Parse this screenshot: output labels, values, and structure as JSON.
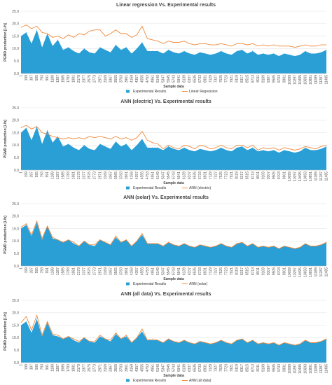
{
  "chart_data": [
    {
      "type": "area",
      "title": "Linear regression Vs. Experimental results",
      "xlabel": "Sample data",
      "ylabel": "PGMD production [L/h]",
      "ylim": [
        0,
        25
      ],
      "yticks": [
        "0.0",
        "5.0",
        "10.0",
        "15.0",
        "20.0",
        "25.0"
      ],
      "x_ticks": [
        "1",
        "199",
        "397",
        "595",
        "793",
        "991",
        "1189",
        "1387",
        "1585",
        "1783",
        "1981",
        "2179",
        "2377",
        "2575",
        "2773",
        "2971",
        "3169",
        "3367",
        "3565",
        "3763",
        "3961",
        "4159",
        "4357",
        "4555",
        "4753",
        "4951",
        "5149",
        "5347",
        "5545",
        "5743",
        "5941",
        "6139",
        "6337",
        "6535",
        "6733",
        "6931",
        "7129",
        "7327",
        "7525",
        "7723",
        "7921",
        "8119",
        "8317",
        "8515",
        "8713",
        "8911",
        "9109",
        "9307",
        "9505",
        "9703",
        "9901",
        "10099",
        "10297",
        "10495",
        "10693",
        "10891",
        "11089",
        "11287",
        "11485"
      ],
      "grid": true,
      "legend": "bottom",
      "series": [
        {
          "name": "Experimental Results",
          "color": "#2a9fd6",
          "kind": "area",
          "values": [
            15.0,
            16.5,
            12.0,
            17.5,
            10.5,
            16.0,
            11.0,
            13.5,
            9.5,
            10.5,
            9.0,
            8.0,
            10.0,
            8.5,
            8.0,
            10.5,
            9.5,
            8.5,
            11.5,
            9.5,
            10.5,
            8.0,
            10.0,
            12.5,
            9.0,
            9.0,
            9.0,
            8.0,
            9.5,
            8.5,
            8.0,
            9.0,
            8.0,
            7.5,
            8.5,
            8.0,
            7.5,
            8.0,
            9.0,
            8.0,
            7.5,
            9.0,
            9.5,
            8.0,
            9.0,
            7.5,
            8.0,
            7.5,
            8.0,
            7.0,
            8.0,
            7.5,
            7.0,
            7.5,
            9.0,
            8.0,
            8.0,
            8.5,
            9.5
          ]
        },
        {
          "name": "Linear Regression",
          "color": "#f08a3c",
          "kind": "line",
          "values": [
            18.5,
            19.5,
            18.0,
            19.0,
            16.5,
            16.0,
            14.5,
            15.0,
            14.0,
            15.5,
            14.5,
            16.0,
            15.5,
            17.0,
            17.5,
            17.5,
            15.0,
            16.0,
            17.5,
            16.0,
            16.0,
            14.5,
            15.5,
            19.0,
            14.0,
            13.5,
            13.0,
            12.0,
            13.0,
            12.5,
            12.5,
            13.0,
            12.0,
            11.5,
            12.0,
            12.0,
            11.5,
            11.5,
            12.0,
            11.5,
            11.0,
            12.0,
            12.0,
            11.5,
            12.0,
            11.0,
            11.5,
            11.0,
            11.5,
            11.0,
            11.0,
            11.0,
            10.5,
            11.0,
            11.5,
            11.0,
            11.0,
            11.5,
            11.5
          ]
        }
      ]
    },
    {
      "type": "area",
      "title": "ANN (electric) Vs. Experimental results",
      "xlabel": "Sample data",
      "ylabel": "PGMD production [L/h]",
      "ylim": [
        0,
        25
      ],
      "yticks": [
        "0.0",
        "5.0",
        "10.0",
        "15.0",
        "20.0",
        "25.0"
      ],
      "x_ticks": [
        "1",
        "199",
        "397",
        "595",
        "793",
        "991",
        "1189",
        "1387",
        "1585",
        "1783",
        "1981",
        "2179",
        "2377",
        "2575",
        "2773",
        "2971",
        "3169",
        "3367",
        "3565",
        "3763",
        "3961",
        "4159",
        "4357",
        "4555",
        "4753",
        "4951",
        "5149",
        "5347",
        "5545",
        "5743",
        "5941",
        "6139",
        "6337",
        "6535",
        "6733",
        "6931",
        "7129",
        "7327",
        "7525",
        "7723",
        "7921",
        "8119",
        "8317",
        "8515",
        "8713",
        "8911",
        "9109",
        "9307",
        "9505",
        "9703",
        "9901",
        "10099",
        "10297",
        "10495",
        "10693",
        "10891",
        "11089",
        "11287",
        "11485"
      ],
      "grid": true,
      "legend": "bottom",
      "series": [
        {
          "name": "Experimental Results",
          "color": "#2a9fd6",
          "kind": "area",
          "values": [
            15.0,
            17.0,
            12.0,
            17.5,
            10.5,
            16.0,
            11.0,
            13.5,
            9.5,
            10.5,
            9.0,
            8.0,
            10.0,
            8.5,
            8.0,
            10.5,
            9.5,
            8.5,
            11.5,
            9.5,
            10.5,
            8.0,
            10.0,
            12.5,
            9.0,
            9.0,
            9.0,
            8.0,
            9.5,
            8.5,
            8.0,
            9.0,
            8.0,
            7.5,
            8.5,
            8.0,
            7.5,
            8.0,
            9.0,
            8.0,
            7.5,
            9.0,
            9.5,
            8.0,
            9.0,
            7.5,
            8.0,
            7.5,
            8.0,
            7.0,
            8.0,
            7.5,
            7.0,
            7.5,
            9.0,
            8.0,
            8.0,
            8.5,
            9.5
          ]
        },
        {
          "name": "ANN (electric)",
          "color": "#f08a3c",
          "kind": "line",
          "values": [
            17.0,
            18.0,
            16.5,
            17.5,
            15.0,
            14.5,
            13.5,
            13.0,
            12.5,
            13.0,
            12.5,
            13.0,
            12.5,
            13.5,
            13.0,
            13.5,
            13.0,
            12.5,
            13.5,
            12.5,
            13.0,
            12.0,
            13.0,
            15.5,
            12.0,
            11.0,
            10.5,
            8.5,
            10.0,
            9.0,
            8.5,
            10.0,
            9.5,
            8.5,
            10.0,
            9.5,
            8.5,
            9.0,
            10.0,
            9.0,
            8.5,
            10.0,
            10.0,
            9.0,
            10.0,
            8.0,
            9.0,
            8.5,
            9.0,
            8.0,
            9.0,
            8.5,
            8.0,
            8.5,
            9.5,
            9.0,
            8.5,
            9.5,
            10.0
          ]
        }
      ]
    },
    {
      "type": "area",
      "title": "ANN (solar) Vs. Experimental results",
      "xlabel": "Sample data",
      "ylabel": "PGMD production [L/h]",
      "ylim": [
        0,
        25
      ],
      "yticks": [
        "0.0",
        "5.0",
        "10.0",
        "15.0",
        "20.0",
        "25.0"
      ],
      "x_ticks": [
        "1",
        "199",
        "397",
        "595",
        "793",
        "991",
        "1189",
        "1387",
        "1585",
        "1783",
        "1981",
        "2179",
        "2377",
        "2575",
        "2773",
        "2971",
        "3169",
        "3367",
        "3565",
        "3763",
        "3961",
        "4159",
        "4357",
        "4555",
        "4753",
        "4951",
        "5149",
        "5347",
        "5545",
        "5743",
        "5941",
        "6139",
        "6337",
        "6535",
        "6733",
        "6931",
        "7129",
        "7327",
        "7525",
        "7723",
        "7921",
        "8119",
        "8317",
        "8515",
        "8713",
        "8911",
        "9109",
        "9307",
        "9505",
        "9703",
        "9901",
        "10099",
        "10297",
        "10495",
        "10693",
        "10891",
        "11089",
        "11287",
        "11485"
      ],
      "grid": true,
      "legend": "bottom",
      "series": [
        {
          "name": "Experimental Results",
          "color": "#2a9fd6",
          "kind": "area",
          "values": [
            15.0,
            16.5,
            12.0,
            17.5,
            10.5,
            16.0,
            11.0,
            10.5,
            9.5,
            10.5,
            9.0,
            8.0,
            10.0,
            8.5,
            8.0,
            10.5,
            9.5,
            8.5,
            11.5,
            9.5,
            10.5,
            8.0,
            10.0,
            12.5,
            9.0,
            9.0,
            9.0,
            8.0,
            9.5,
            8.5,
            8.0,
            9.0,
            8.0,
            7.5,
            8.5,
            8.0,
            7.5,
            8.0,
            9.0,
            8.0,
            7.5,
            9.0,
            9.5,
            8.0,
            9.0,
            7.5,
            8.0,
            7.5,
            8.0,
            7.0,
            8.0,
            7.5,
            7.0,
            7.5,
            9.0,
            8.0,
            8.0,
            8.5,
            9.5
          ]
        },
        {
          "name": "ANN (solar)",
          "color": "#f08a3c",
          "kind": "line",
          "values": [
            15.5,
            17.0,
            12.5,
            18.0,
            11.0,
            16.0,
            11.5,
            10.5,
            9.5,
            10.5,
            9.5,
            8.0,
            10.0,
            8.5,
            8.5,
            10.5,
            9.5,
            8.5,
            12.0,
            9.5,
            10.5,
            8.0,
            10.0,
            13.0,
            9.0,
            9.0,
            9.0,
            8.0,
            9.5,
            8.5,
            8.0,
            9.0,
            8.0,
            7.5,
            8.5,
            8.0,
            7.5,
            8.0,
            9.0,
            8.0,
            7.5,
            9.0,
            9.5,
            8.0,
            9.0,
            7.5,
            8.0,
            7.5,
            8.0,
            7.0,
            8.0,
            7.5,
            7.0,
            7.5,
            9.0,
            8.0,
            8.0,
            8.5,
            9.5
          ]
        }
      ]
    },
    {
      "type": "area",
      "title": "ANN (all data) Vs. Experimental results",
      "xlabel": "Sample data",
      "ylabel": "PGMD production [L/h]",
      "ylim": [
        0,
        25
      ],
      "yticks": [
        "0.0",
        "5.0",
        "10.0",
        "15.0",
        "20.0",
        "25.0"
      ],
      "x_ticks": [
        "1",
        "199",
        "397",
        "595",
        "793",
        "991",
        "1189",
        "1387",
        "1585",
        "1783",
        "1981",
        "2179",
        "2377",
        "2575",
        "2773",
        "2971",
        "3169",
        "3367",
        "3565",
        "3763",
        "3961",
        "4159",
        "4357",
        "4555",
        "4753",
        "4951",
        "5149",
        "5347",
        "5545",
        "5743",
        "5941",
        "6139",
        "6337",
        "6535",
        "6733",
        "6931",
        "7129",
        "7327",
        "7525",
        "7723",
        "7921",
        "8119",
        "8317",
        "8515",
        "8713",
        "8911",
        "9109",
        "9307",
        "9505",
        "9703",
        "9901",
        "10099",
        "10297",
        "10495",
        "10693",
        "10891",
        "11089",
        "11287",
        "11485"
      ],
      "grid": true,
      "legend": "bottom",
      "series": [
        {
          "name": "Experimental Results",
          "color": "#2a9fd6",
          "kind": "area",
          "values": [
            15.0,
            16.5,
            12.0,
            17.5,
            10.5,
            16.0,
            11.0,
            10.5,
            9.5,
            10.5,
            9.0,
            8.0,
            10.0,
            8.5,
            8.0,
            10.5,
            9.5,
            8.5,
            11.5,
            9.5,
            10.5,
            8.0,
            10.0,
            12.5,
            9.0,
            9.0,
            9.0,
            8.0,
            9.5,
            8.5,
            8.0,
            9.0,
            8.0,
            7.5,
            8.5,
            8.0,
            7.5,
            8.0,
            9.0,
            8.0,
            7.5,
            9.0,
            9.5,
            8.0,
            9.0,
            7.5,
            8.0,
            7.5,
            8.0,
            7.0,
            8.0,
            7.5,
            7.0,
            7.5,
            9.0,
            8.0,
            8.0,
            8.5,
            9.5
          ]
        },
        {
          "name": "ANN (all data)",
          "color": "#f08a3c",
          "kind": "line",
          "values": [
            16.0,
            18.5,
            13.0,
            19.0,
            11.0,
            16.5,
            11.5,
            11.0,
            9.5,
            10.5,
            9.5,
            8.5,
            10.0,
            8.5,
            8.5,
            11.0,
            9.5,
            9.0,
            12.0,
            9.5,
            11.0,
            8.0,
            10.0,
            13.5,
            9.0,
            9.5,
            9.0,
            8.0,
            9.5,
            8.5,
            8.0,
            9.0,
            8.0,
            7.5,
            8.5,
            8.0,
            7.5,
            8.0,
            9.0,
            8.0,
            7.5,
            9.0,
            9.5,
            8.0,
            9.0,
            7.5,
            8.0,
            7.5,
            8.0,
            7.0,
            8.0,
            7.5,
            7.0,
            7.5,
            9.0,
            8.0,
            8.0,
            8.5,
            9.5
          ]
        }
      ]
    }
  ]
}
